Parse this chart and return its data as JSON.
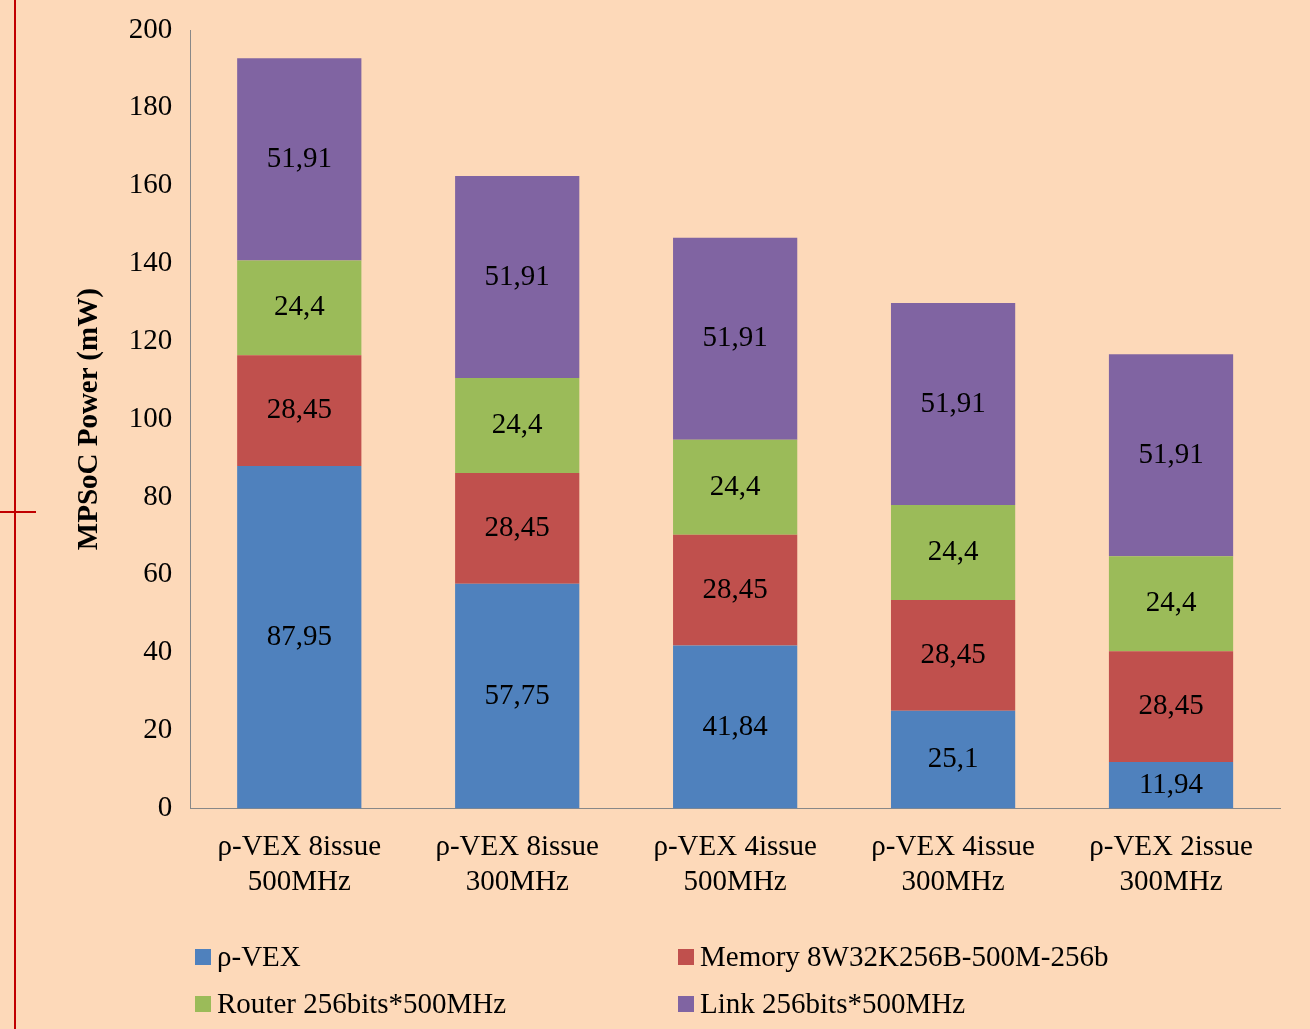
{
  "chart_data": {
    "type": "bar",
    "stacked": true,
    "ylabel": "MPSoC Power (mW)",
    "categories": [
      "ρ-VEX 8issue 500MHz",
      "ρ-VEX 8issue 300MHz",
      "ρ-VEX 4issue 500MHz",
      "ρ-VEX 4issue 300MHz",
      "ρ-VEX 2issue 300MHz"
    ],
    "series": [
      {
        "name": "ρ-VEX",
        "color": "#4f81bd",
        "values": [
          87.95,
          57.75,
          41.84,
          25.1,
          11.94
        ],
        "value_labels": [
          "87,95",
          "57,75",
          "41,84",
          "25,1",
          "11,94"
        ]
      },
      {
        "name": "Memory 8W32K256B-500M-256b",
        "color": "#c0504d",
        "values": [
          28.45,
          28.45,
          28.45,
          28.45,
          28.45
        ],
        "value_labels": [
          "28,45",
          "28,45",
          "28,45",
          "28,45",
          "28,45"
        ]
      },
      {
        "name": "Router 256bits*500MHz",
        "color": "#9bbb59",
        "values": [
          24.4,
          24.4,
          24.4,
          24.4,
          24.4
        ],
        "value_labels": [
          "24,4",
          "24,4",
          "24,4",
          "24,4",
          "24,4"
        ]
      },
      {
        "name": "Link 256bits*500MHz",
        "color": "#8064a2",
        "values": [
          51.91,
          51.91,
          51.91,
          51.91,
          51.91
        ],
        "value_labels": [
          "51,91",
          "51,91",
          "51,91",
          "51,91",
          "51,91"
        ]
      }
    ],
    "ylim": [
      0,
      200
    ],
    "yticks": [
      0,
      20,
      40,
      60,
      80,
      100,
      120,
      140,
      160,
      180,
      200
    ],
    "grid": false,
    "legend": "bottom"
  }
}
